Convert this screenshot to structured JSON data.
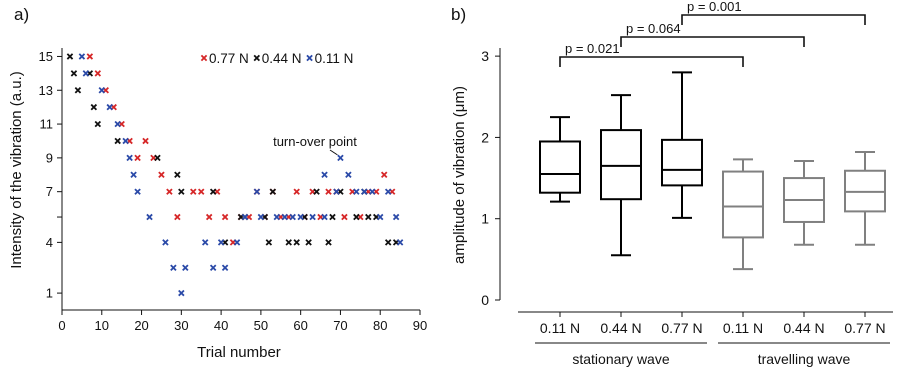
{
  "chart_data": [
    {
      "panel_label": "a)",
      "type": "scatter",
      "xlabel": "Trial number",
      "ylabel": "Intensity of the vibration (a.u.)",
      "xlim": [
        0,
        90
      ],
      "ylim": [
        0,
        15.5
      ],
      "xticks": [
        0,
        10,
        20,
        30,
        40,
        50,
        60,
        70,
        80,
        90
      ],
      "yticks": [
        1,
        4,
        5.5,
        7,
        9,
        11,
        13,
        15
      ],
      "ytick_labels": [
        "1",
        "4",
        "",
        "7",
        "9",
        "11",
        "13",
        "15"
      ],
      "marker": "×",
      "legend": [
        {
          "label": "0.77 N",
          "color": "#d62728"
        },
        {
          "label": "0.44 N",
          "color": "#111111"
        },
        {
          "label": "0.11 N",
          "color": "#2b4aa8"
        }
      ],
      "annotation": {
        "text": "turn-over point",
        "x": 70,
        "y": 9
      },
      "series": [
        {
          "name": "0.77 N",
          "color": "#d62728",
          "points": [
            [
              7,
              15
            ],
            [
              9,
              14
            ],
            [
              11,
              13
            ],
            [
              13,
              12
            ],
            [
              15,
              11
            ],
            [
              17,
              10
            ],
            [
              19,
              9
            ],
            [
              21,
              10
            ],
            [
              23,
              9
            ],
            [
              25,
              8
            ],
            [
              27,
              7
            ],
            [
              29,
              5.5
            ],
            [
              33,
              7
            ],
            [
              35,
              7
            ],
            [
              37,
              5.5
            ],
            [
              39,
              7
            ],
            [
              41,
              5.5
            ],
            [
              43,
              4
            ],
            [
              45,
              5.5
            ],
            [
              47,
              5.5
            ],
            [
              49,
              7
            ],
            [
              51,
              5.5
            ],
            [
              53,
              7
            ],
            [
              55,
              5.5
            ],
            [
              57,
              5.5
            ],
            [
              59,
              7
            ],
            [
              61,
              5.5
            ],
            [
              63,
              7
            ],
            [
              65,
              5.5
            ],
            [
              67,
              7
            ],
            [
              69,
              7
            ],
            [
              71,
              5.5
            ],
            [
              73,
              7
            ],
            [
              75,
              5.5
            ],
            [
              77,
              7
            ],
            [
              79,
              7
            ],
            [
              81,
              8
            ],
            [
              83,
              7
            ]
          ]
        },
        {
          "name": "0.44 N",
          "color": "#111111",
          "points": [
            [
              2,
              15
            ],
            [
              3,
              14
            ],
            [
              4,
              13
            ],
            [
              7,
              14
            ],
            [
              8,
              12
            ],
            [
              9,
              11
            ],
            [
              14,
              10
            ],
            [
              24,
              9
            ],
            [
              29,
              8
            ],
            [
              30,
              7
            ],
            [
              38,
              7
            ],
            [
              41,
              4
            ],
            [
              45,
              5.5
            ],
            [
              46,
              5.5
            ],
            [
              51,
              5.5
            ],
            [
              52,
              4
            ],
            [
              53,
              7
            ],
            [
              57,
              4
            ],
            [
              59,
              4
            ],
            [
              61,
              5.5
            ],
            [
              62,
              4
            ],
            [
              64,
              7
            ],
            [
              67,
              4
            ],
            [
              68,
              5.5
            ],
            [
              70,
              7
            ],
            [
              74,
              5.5
            ],
            [
              76,
              7
            ],
            [
              77,
              5.5
            ],
            [
              79,
              5.5
            ],
            [
              82,
              4
            ],
            [
              84,
              4
            ]
          ]
        },
        {
          "name": "0.11 N",
          "color": "#2b4aa8",
          "points": [
            [
              5,
              15
            ],
            [
              6,
              14
            ],
            [
              10,
              13
            ],
            [
              12,
              12
            ],
            [
              14,
              11
            ],
            [
              16,
              10
            ],
            [
              17,
              9
            ],
            [
              18,
              8
            ],
            [
              19,
              7
            ],
            [
              22,
              5.5
            ],
            [
              26,
              4
            ],
            [
              28,
              2.5
            ],
            [
              30,
              1
            ],
            [
              31,
              2.5
            ],
            [
              36,
              4
            ],
            [
              38,
              2.5
            ],
            [
              40,
              4
            ],
            [
              41,
              2.5
            ],
            [
              44,
              4
            ],
            [
              46,
              5.5
            ],
            [
              49,
              7
            ],
            [
              50,
              5.5
            ],
            [
              54,
              5.5
            ],
            [
              56,
              5.5
            ],
            [
              58,
              5.5
            ],
            [
              60,
              5.5
            ],
            [
              63,
              5.5
            ],
            [
              66,
              8
            ],
            [
              66,
              5.5
            ],
            [
              69,
              7
            ],
            [
              70,
              9
            ],
            [
              72,
              8
            ],
            [
              74,
              7
            ],
            [
              76,
              7
            ],
            [
              78,
              7
            ],
            [
              80,
              5.5
            ],
            [
              82,
              7
            ],
            [
              84,
              5.5
            ],
            [
              85,
              4
            ]
          ]
        }
      ]
    },
    {
      "panel_label": "b)",
      "type": "boxplot",
      "ylabel": "amplitude of vibration (μm)",
      "ylim": [
        0,
        3.1
      ],
      "yticks": [
        0,
        1,
        2,
        3
      ],
      "categories": [
        "0.11 N",
        "0.44 N",
        "0.77 N",
        "0.11 N",
        "0.44 N",
        "0.77 N"
      ],
      "groups": [
        {
          "label": "stationary wave",
          "members": [
            0,
            1,
            2
          ]
        },
        {
          "label": "travelling wave",
          "members": [
            3,
            4,
            5
          ]
        }
      ],
      "colors": {
        "stationary": "#000000",
        "travelling": "#808080"
      },
      "boxes": [
        {
          "whisker_low": 1.21,
          "q1": 1.32,
          "median": 1.55,
          "q3": 1.95,
          "whisker_high": 2.25,
          "group": "stationary"
        },
        {
          "whisker_low": 0.55,
          "q1": 1.24,
          "median": 1.65,
          "q3": 2.09,
          "whisker_high": 2.52,
          "group": "stationary"
        },
        {
          "whisker_low": 1.01,
          "q1": 1.41,
          "median": 1.6,
          "q3": 1.97,
          "whisker_high": 2.8,
          "group": "stationary"
        },
        {
          "whisker_low": 0.38,
          "q1": 0.77,
          "median": 1.15,
          "q3": 1.58,
          "whisker_high": 1.73,
          "group": "travelling"
        },
        {
          "whisker_low": 0.68,
          "q1": 0.96,
          "median": 1.23,
          "q3": 1.5,
          "whisker_high": 1.71,
          "group": "travelling"
        },
        {
          "whisker_low": 0.68,
          "q1": 1.09,
          "median": 1.33,
          "q3": 1.59,
          "whisker_high": 1.82,
          "group": "travelling"
        }
      ],
      "significance": [
        {
          "from": 0,
          "to": 3,
          "label": "p = 0.021"
        },
        {
          "from": 1,
          "to": 4,
          "label": "p = 0.064"
        },
        {
          "from": 2,
          "to": 5,
          "label": "p = 0.001"
        }
      ]
    }
  ]
}
